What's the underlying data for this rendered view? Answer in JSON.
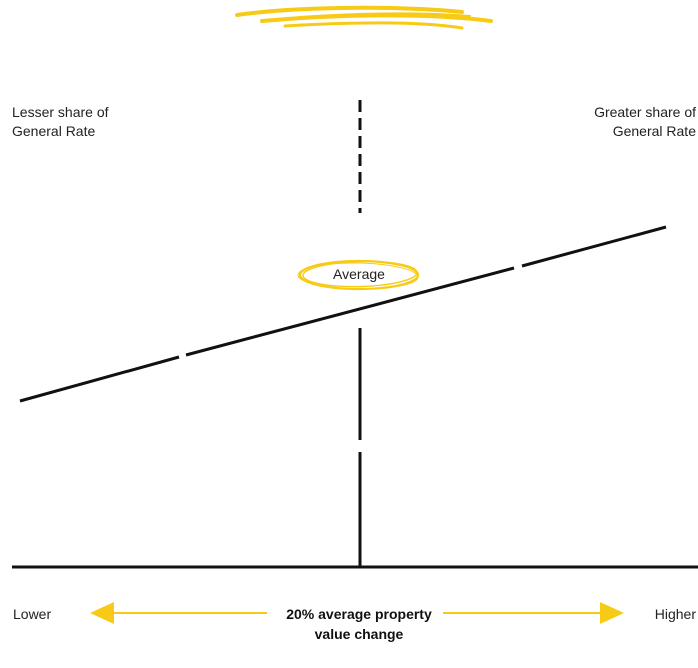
{
  "labels": {
    "left_top": "Lesser share of General Rate",
    "right_top": "Greater share of General Rate",
    "average": "Average",
    "lower": "Lower",
    "higher": "Higher",
    "center": "20% average property value change"
  },
  "colors": {
    "accent": "#F7CB15",
    "line": "#111111"
  },
  "icons": [
    "scribble-decoration",
    "left-arrow-icon",
    "right-arrow-icon"
  ]
}
